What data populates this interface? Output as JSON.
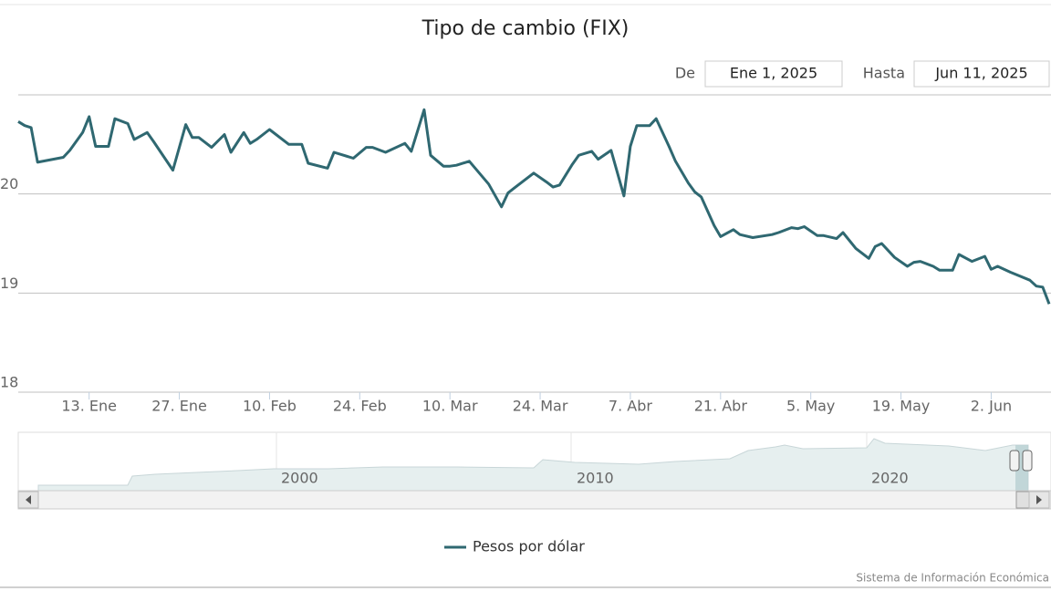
{
  "chart_data": {
    "type": "line",
    "title": "Tipo de cambio (FIX)",
    "range_selector": {
      "from_label": "De",
      "from_value": "Ene 1, 2025",
      "to_label": "Hasta",
      "to_value": "Jun 11, 2025"
    },
    "x": [
      "2025-01-02",
      "2025-01-03",
      "2025-01-04",
      "2025-01-05",
      "2025-01-09",
      "2025-01-10",
      "2025-01-12",
      "2025-01-13",
      "2025-01-14",
      "2025-01-16",
      "2025-01-17",
      "2025-01-19",
      "2025-01-20",
      "2025-01-22",
      "2025-01-23",
      "2025-01-26",
      "2025-01-28",
      "2025-01-29",
      "2025-01-30",
      "2025-02-01",
      "2025-02-03",
      "2025-02-04",
      "2025-02-06",
      "2025-02-07",
      "2025-02-08",
      "2025-02-10",
      "2025-02-13",
      "2025-02-15",
      "2025-02-16",
      "2025-02-19",
      "2025-02-20",
      "2025-02-23",
      "2025-02-25",
      "2025-02-26",
      "2025-02-28",
      "2025-03-03",
      "2025-03-04",
      "2025-03-06",
      "2025-03-07",
      "2025-03-09",
      "2025-03-10",
      "2025-03-11",
      "2025-03-13",
      "2025-03-16",
      "2025-03-18",
      "2025-03-19",
      "2025-03-20",
      "2025-03-23",
      "2025-03-25",
      "2025-03-26",
      "2025-03-27",
      "2025-03-29",
      "2025-03-30",
      "2025-04-01",
      "2025-04-02",
      "2025-04-04",
      "2025-04-06",
      "2025-04-07",
      "2025-04-08",
      "2025-04-10",
      "2025-04-11",
      "2025-04-13",
      "2025-04-14",
      "2025-04-16",
      "2025-04-17",
      "2025-04-18",
      "2025-04-20",
      "2025-04-21",
      "2025-04-23",
      "2025-04-24",
      "2025-04-26",
      "2025-04-29",
      "2025-04-30",
      "2025-05-02",
      "2025-05-03",
      "2025-05-04",
      "2025-05-06",
      "2025-05-07",
      "2025-05-09",
      "2025-05-10",
      "2025-05-12",
      "2025-05-14",
      "2025-05-15",
      "2025-05-16",
      "2025-05-18",
      "2025-05-20",
      "2025-05-21",
      "2025-05-22",
      "2025-05-24",
      "2025-05-25",
      "2025-05-27",
      "2025-05-28",
      "2025-05-30",
      "2025-06-01",
      "2025-06-02",
      "2025-06-03",
      "2025-06-05",
      "2025-06-08",
      "2025-06-09",
      "2025-06-10",
      "2025-06-11"
    ],
    "series": [
      {
        "name": "Pesos por dólar",
        "color": "#2f6871",
        "values": [
          20.73,
          20.69,
          20.67,
          20.32,
          20.37,
          20.44,
          20.62,
          20.78,
          20.48,
          20.48,
          20.76,
          20.71,
          20.55,
          20.62,
          20.53,
          20.24,
          20.7,
          20.57,
          20.57,
          20.47,
          20.6,
          20.42,
          20.62,
          20.51,
          20.55,
          20.65,
          20.5,
          20.5,
          20.31,
          20.26,
          20.42,
          20.36,
          20.47,
          20.47,
          20.42,
          20.51,
          20.43,
          20.85,
          20.39,
          20.28,
          20.28,
          20.29,
          20.33,
          20.1,
          19.87,
          20.01,
          20.06,
          20.21,
          20.12,
          20.07,
          20.09,
          20.3,
          20.39,
          20.43,
          20.35,
          20.44,
          19.98,
          20.48,
          20.69,
          20.69,
          20.76,
          20.48,
          20.33,
          20.11,
          20.02,
          19.97,
          19.68,
          19.57,
          19.64,
          19.59,
          19.56,
          19.59,
          19.61,
          19.66,
          19.65,
          19.67,
          19.58,
          19.58,
          19.55,
          19.61,
          19.45,
          19.35,
          19.47,
          19.5,
          19.36,
          19.27,
          19.31,
          19.32,
          19.27,
          19.23,
          19.23,
          19.39,
          19.32,
          19.37,
          19.24,
          19.27,
          19.21,
          19.13,
          19.07,
          19.06,
          18.89
        ]
      }
    ],
    "xlim": [
      "2025-01-02",
      "2025-06-11"
    ],
    "xticks": [
      {
        "value": "2025-01-13",
        "label": "13. Ene"
      },
      {
        "value": "2025-01-27",
        "label": "27. Ene"
      },
      {
        "value": "2025-02-10",
        "label": "10. Feb"
      },
      {
        "value": "2025-02-24",
        "label": "24. Feb"
      },
      {
        "value": "2025-03-10",
        "label": "10. Mar"
      },
      {
        "value": "2025-03-24",
        "label": "24. Mar"
      },
      {
        "value": "2025-04-07",
        "label": "7. Abr"
      },
      {
        "value": "2025-04-21",
        "label": "21. Abr"
      },
      {
        "value": "2025-05-05",
        "label": "5. May"
      },
      {
        "value": "2025-05-19",
        "label": "19. May"
      },
      {
        "value": "2025-06-02",
        "label": "2. Jun"
      }
    ],
    "ylim": [
      18,
      21
    ],
    "yticks": [
      18,
      19,
      20
    ],
    "grid": true,
    "navigator_labels": [
      "2000",
      "2010",
      "2020"
    ],
    "credits": "Sistema de Información Económica"
  }
}
